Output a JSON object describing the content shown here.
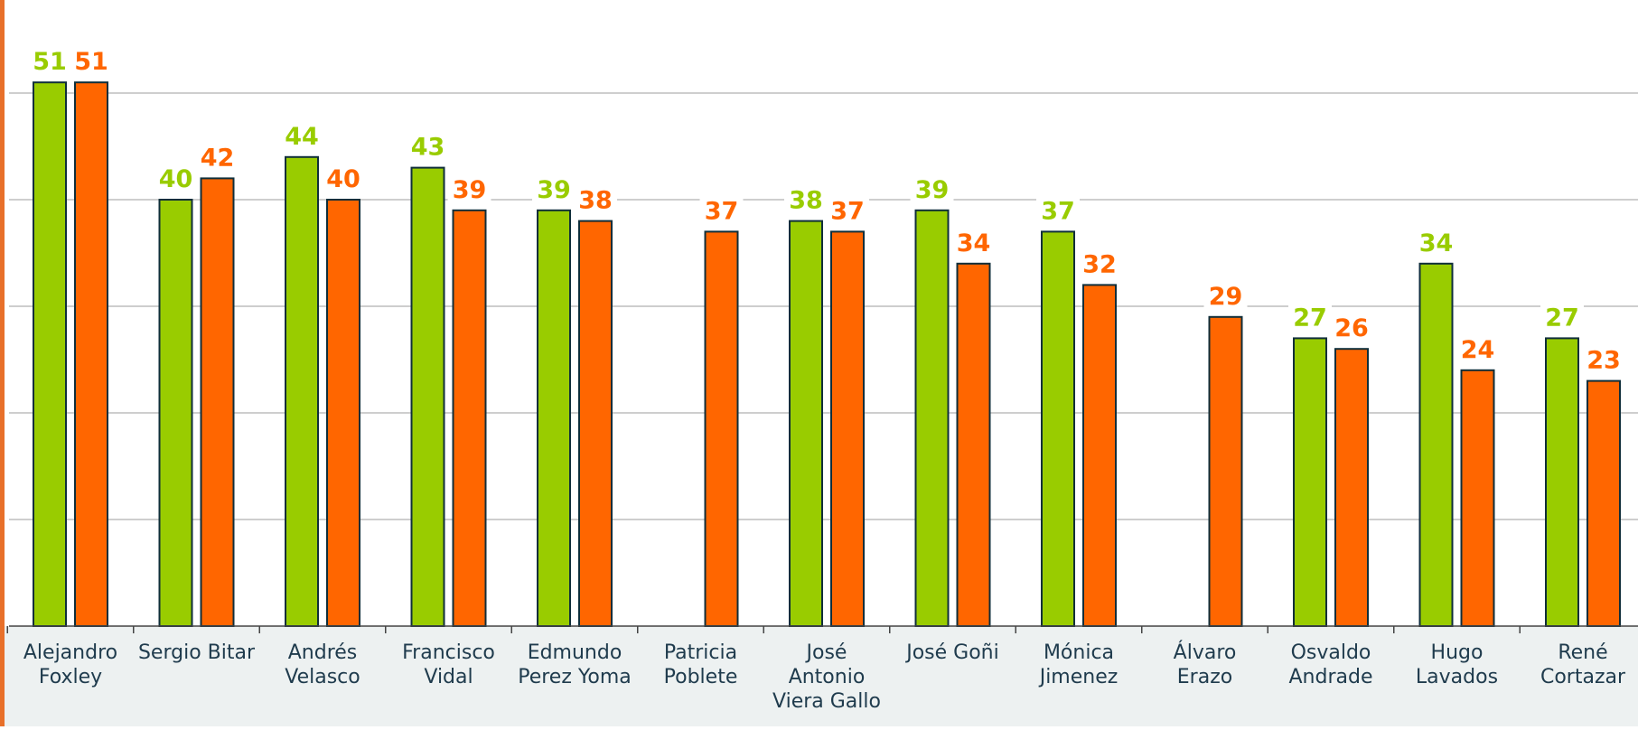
{
  "chart_data": {
    "type": "bar",
    "categories": [
      [
        "Alejandro",
        "Foxley"
      ],
      [
        "Sergio Bitar"
      ],
      [
        "Andrés",
        "Velasco"
      ],
      [
        "Francisco",
        "Vidal"
      ],
      [
        "Edmundo",
        "Perez Yoma"
      ],
      [
        "Patricia",
        "Poblete"
      ],
      [
        "José",
        "Antonio",
        "Viera Gallo"
      ],
      [
        "José Goñi"
      ],
      [
        "Mónica",
        "Jimenez"
      ],
      [
        "Álvaro",
        "Erazo"
      ],
      [
        "Osvaldo",
        "Andrade"
      ],
      [
        "Hugo",
        "Lavados"
      ],
      [
        "René",
        "Cortazar"
      ]
    ],
    "series": [
      {
        "color": "#99cc00",
        "values": [
          51,
          40,
          44,
          43,
          39,
          null,
          38,
          39,
          37,
          null,
          27,
          34,
          27
        ]
      },
      {
        "color": "#ff6600",
        "values": [
          51,
          42,
          40,
          39,
          38,
          37,
          37,
          34,
          32,
          29,
          26,
          24,
          23
        ]
      }
    ],
    "ylim": [
      0,
      55
    ],
    "grid": true,
    "colors": {
      "bar_outline": "#0f2e3a",
      "left_border": "#e8702a",
      "axis_band": "#edf1f1",
      "gridline": "#bdbdbd",
      "category_text": "#1f3b4d"
    }
  }
}
